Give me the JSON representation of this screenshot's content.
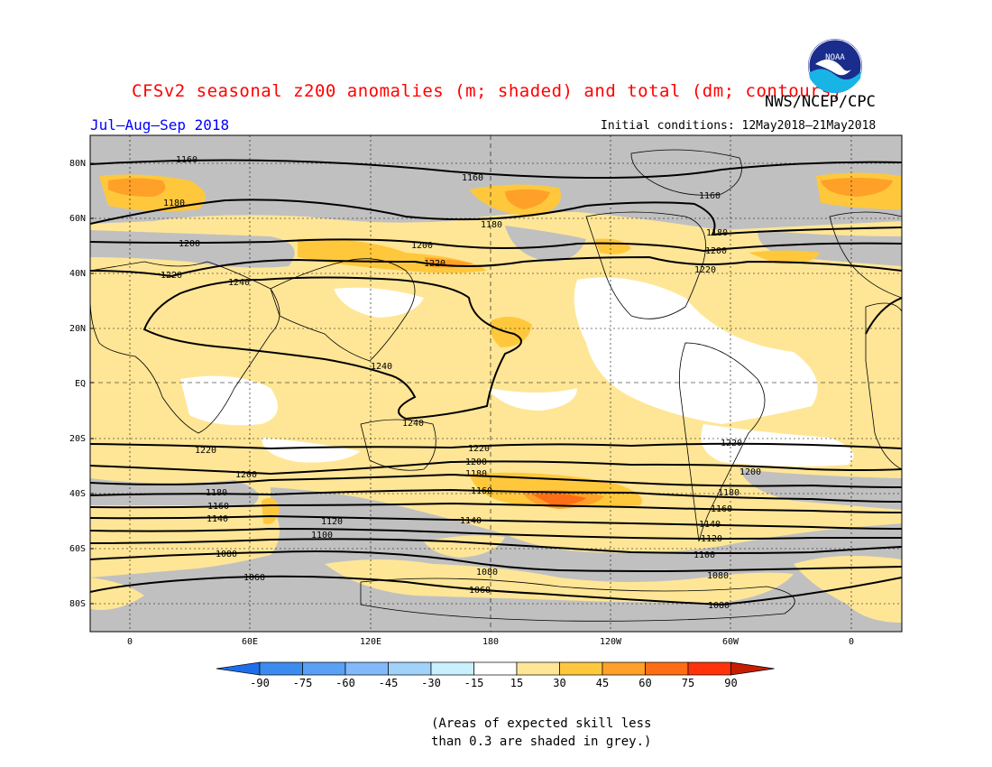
{
  "title": "CFSv2 seasonal z200 anomalies (m; shaded) and total (dm; contours)",
  "agency": "NWS/NCEP/CPC",
  "season": "Jul–Aug–Sep 2018",
  "initial_conditions": "Initial conditions: 12May2018–21May2018",
  "logo_text": "NOAA",
  "skill_note": [
    "(Areas of expected skill less",
    "than 0.3 are shaded in grey.)"
  ],
  "map": {
    "lat_labels": [
      "80N",
      "60N",
      "40N",
      "20N",
      "EQ",
      "20S",
      "40S",
      "60S",
      "80S"
    ],
    "lon_labels": [
      "0",
      "60E",
      "120E",
      "180",
      "120W",
      "60W",
      "0"
    ]
  },
  "contour_labels": [
    "1160",
    "1160",
    "1160",
    "1180",
    "1180",
    "1180",
    "1200",
    "1200",
    "1200",
    "1220",
    "1220",
    "1220",
    "1240",
    "1240",
    "1240",
    "1220",
    "1220",
    "1220",
    "1200",
    "1200",
    "1200",
    "1180",
    "1180",
    "1180",
    "1160",
    "1160",
    "1160",
    "1140",
    "1140",
    "1140",
    "1120",
    "1120",
    "1100",
    "1100",
    "1080",
    "1080",
    "1080",
    "1060",
    "1060",
    "1080"
  ],
  "colorbar": {
    "ticks": [
      "-90",
      "-75",
      "-60",
      "-45",
      "-30",
      "-15",
      "15",
      "30",
      "45",
      "60",
      "75",
      "90"
    ],
    "colors": [
      "#1e6eeb",
      "#3c8cf0",
      "#5aa0f5",
      "#82b9fa",
      "#a0d2fa",
      "#c8f0ff",
      "#ffffff",
      "#ffe696",
      "#ffc83c",
      "#ffa028",
      "#ff6e14",
      "#ff320a",
      "#c81e00"
    ]
  },
  "colors": {
    "grey_skill": "#c0c0c0",
    "title": "#ff0000",
    "season": "#0000ff"
  }
}
